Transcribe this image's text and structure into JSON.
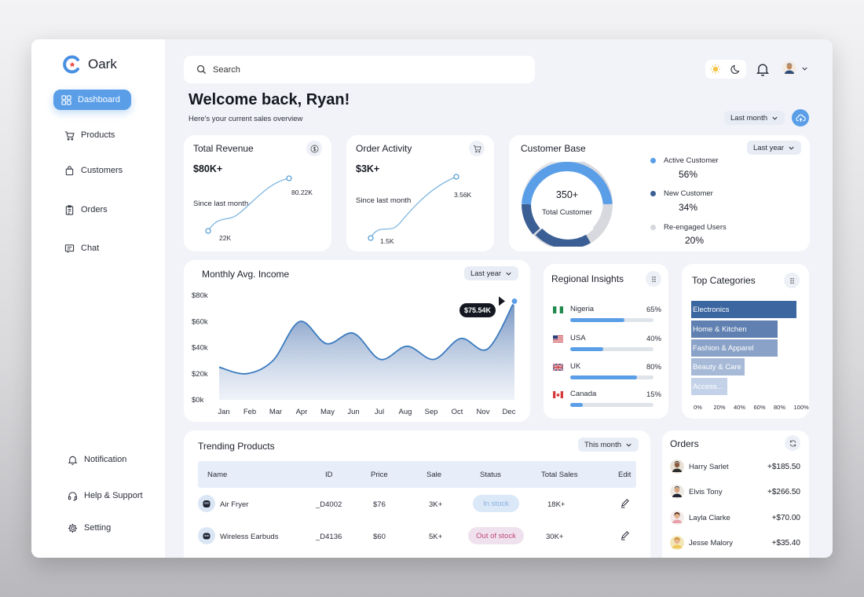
{
  "brand": {
    "name": "Oark"
  },
  "nav": {
    "items": [
      {
        "label": "Dashboard",
        "icon": "grid-icon"
      },
      {
        "label": "Products",
        "icon": "cart-icon"
      },
      {
        "label": "Customers",
        "icon": "bag-icon"
      },
      {
        "label": "Orders",
        "icon": "clipboard-icon"
      },
      {
        "label": "Chat",
        "icon": "chat-icon"
      }
    ],
    "bottom": [
      {
        "label": "Notification",
        "icon": "bell-icon"
      },
      {
        "label": "Help & Support",
        "icon": "headset-icon"
      },
      {
        "label": "Setting",
        "icon": "gear-icon"
      }
    ]
  },
  "header": {
    "search_placeholder": "Search",
    "welcome": "Welcome back, Ryan!",
    "subtitle": "Here's your current sales overview",
    "period_filter": "Last month"
  },
  "revenue": {
    "title": "Total Revenue",
    "value": "$80K+",
    "note": "Since last month",
    "start_label": "22K",
    "end_label": "80.22K"
  },
  "orders_activity": {
    "title": "Order Activity",
    "value": "$3K+",
    "note": "Since last month",
    "start_label": "1.5K",
    "end_label": "3.56K"
  },
  "customer_base": {
    "title": "Customer Base",
    "filter": "Last year",
    "total": "350+",
    "total_label": "Total Customer",
    "legend": [
      {
        "label": "Active Customer",
        "value": "56%",
        "color": "#5a9ee8"
      },
      {
        "label": "New Customer",
        "value": "34%",
        "color": "#3b5f94"
      },
      {
        "label": "Re-engaged Users",
        "value": "20%",
        "color": "#d6d8dd"
      }
    ]
  },
  "income": {
    "title": "Monthly Avg. Income",
    "filter": "Last year",
    "tooltip": "$75.54K",
    "y_ticks": [
      "$80k",
      "$60k",
      "$40k",
      "$20k",
      "$0k"
    ],
    "months": [
      "Jan",
      "Feb",
      "Mar",
      "Apr",
      "May",
      "Jun",
      "Jul",
      "Aug",
      "Sep",
      "Oct",
      "Nov",
      "Dec"
    ]
  },
  "chart_data": {
    "type": "area",
    "title": "Monthly Avg. Income",
    "categories": [
      "Jan",
      "Feb",
      "Mar",
      "Apr",
      "May",
      "Jun",
      "Jul",
      "Aug",
      "Sep",
      "Oct",
      "Nov",
      "Dec"
    ],
    "values": [
      25,
      20,
      30,
      60,
      43,
      51,
      31,
      41,
      31,
      47,
      39,
      75.54
    ],
    "ylabel": "",
    "xlabel": "",
    "ylim": [
      0,
      80
    ],
    "y_ticks": [
      0,
      20,
      40,
      60,
      80
    ],
    "grid": false
  },
  "regional": {
    "title": "Regional Insights",
    "rows": [
      {
        "name": "Nigeria",
        "pct": "65%",
        "value": 0.65
      },
      {
        "name": "USA",
        "pct": "40%",
        "value": 0.4
      },
      {
        "name": "UK",
        "pct": "80%",
        "value": 0.8
      },
      {
        "name": "Canada",
        "pct": "15%",
        "value": 0.15
      }
    ]
  },
  "categories": {
    "title": "Top Categories",
    "bars": [
      {
        "label": "Electronics",
        "value": 100,
        "color": "#3b66a0"
      },
      {
        "label": "Home & Kitchen",
        "value": 82,
        "color": "#5f80b0"
      },
      {
        "label": "Fashion & Apparel",
        "value": 82,
        "color": "#8aa2c7"
      },
      {
        "label": "Beauty & Care",
        "value": 51,
        "color": "#a6b9d6"
      },
      {
        "label": "Access...",
        "value": 34,
        "color": "#c3d2e8"
      }
    ],
    "x_ticks": [
      "0%",
      "20%",
      "40%",
      "60%",
      "80%",
      "100%"
    ]
  },
  "trending": {
    "title": "Trending Products",
    "filter": "This month",
    "columns": [
      "Name",
      "ID",
      "Price",
      "Sale",
      "Status",
      "Total Sales",
      "Edit"
    ],
    "rows": [
      {
        "name": "Air Fryer",
        "id": "_D4002",
        "price": "$76",
        "sale": "3K+",
        "status": "In stock",
        "total": "18K+"
      },
      {
        "name": "Wireless Earbuds",
        "id": "_D4136",
        "price": "$60",
        "sale": "5K+",
        "status": "Out of stock",
        "total": "30K+"
      }
    ]
  },
  "orders": {
    "title": "Orders",
    "rows": [
      {
        "name": "Harry Sarlet",
        "amount": "+$185.50"
      },
      {
        "name": "Elvis Tony",
        "amount": "+$266.50"
      },
      {
        "name": "Layla Clarke",
        "amount": "+$70.00"
      },
      {
        "name": "Jesse Malory",
        "amount": "+$35.40"
      }
    ]
  }
}
